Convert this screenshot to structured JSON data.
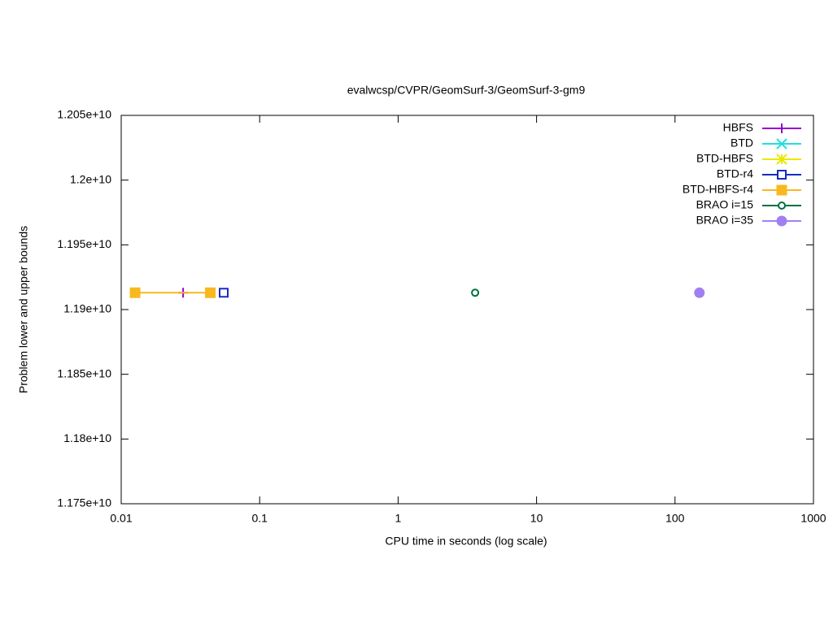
{
  "chart_data": {
    "type": "line",
    "title": "evalwcsp/CVPR/GeomSurf-3/GeomSurf-3-gm9",
    "x_label": "CPU time in seconds (log scale)",
    "y_label": "Problem lower and upper bounds",
    "x_log_scale": true,
    "xlim": [
      0.01,
      1000
    ],
    "xticks": [
      0.01,
      0.1,
      1,
      10,
      100,
      1000
    ],
    "ylim": [
      11750000000,
      12050000000
    ],
    "yticks": [
      {
        "value": 11750000000,
        "label": "1.175e+10"
      },
      {
        "value": 11800000000,
        "label": "1.18e+10"
      },
      {
        "value": 11850000000,
        "label": "1.185e+10"
      },
      {
        "value": 11900000000,
        "label": "1.19e+10"
      },
      {
        "value": 11950000000,
        "label": "1.195e+10"
      },
      {
        "value": 12000000000,
        "label": "1.2e+10"
      },
      {
        "value": 12050000000,
        "label": "1.205e+10"
      }
    ],
    "legend_position": "top-right",
    "series": [
      {
        "name": "HBFS",
        "color": "#9400d3",
        "marker": "plus",
        "x": [
          0.028
        ],
        "values": [
          11913000000
        ]
      },
      {
        "name": "BTD",
        "color": "#20e0e0",
        "marker": "cross",
        "x": [],
        "values": []
      },
      {
        "name": "BTD-HBFS",
        "color": "#e8e800",
        "marker": "star",
        "x": [],
        "values": []
      },
      {
        "name": "BTD-r4",
        "color": "#1a2ac0",
        "marker": "square-open",
        "x": [
          0.055
        ],
        "values": [
          11913000000
        ]
      },
      {
        "name": "BTD-HBFS-r4",
        "color": "#f8b820",
        "marker": "square",
        "x": [
          0.0126,
          0.044
        ],
        "values": [
          11913000000,
          11913000000
        ]
      },
      {
        "name": "BRAO i=15",
        "color": "#007040",
        "marker": "circle-open",
        "x": [
          3.6
        ],
        "values": [
          11913000000
        ]
      },
      {
        "name": "BRAO i=35",
        "color": "#a080f0",
        "marker": "circle",
        "x": [
          150
        ],
        "values": [
          11913000000
        ]
      }
    ]
  }
}
